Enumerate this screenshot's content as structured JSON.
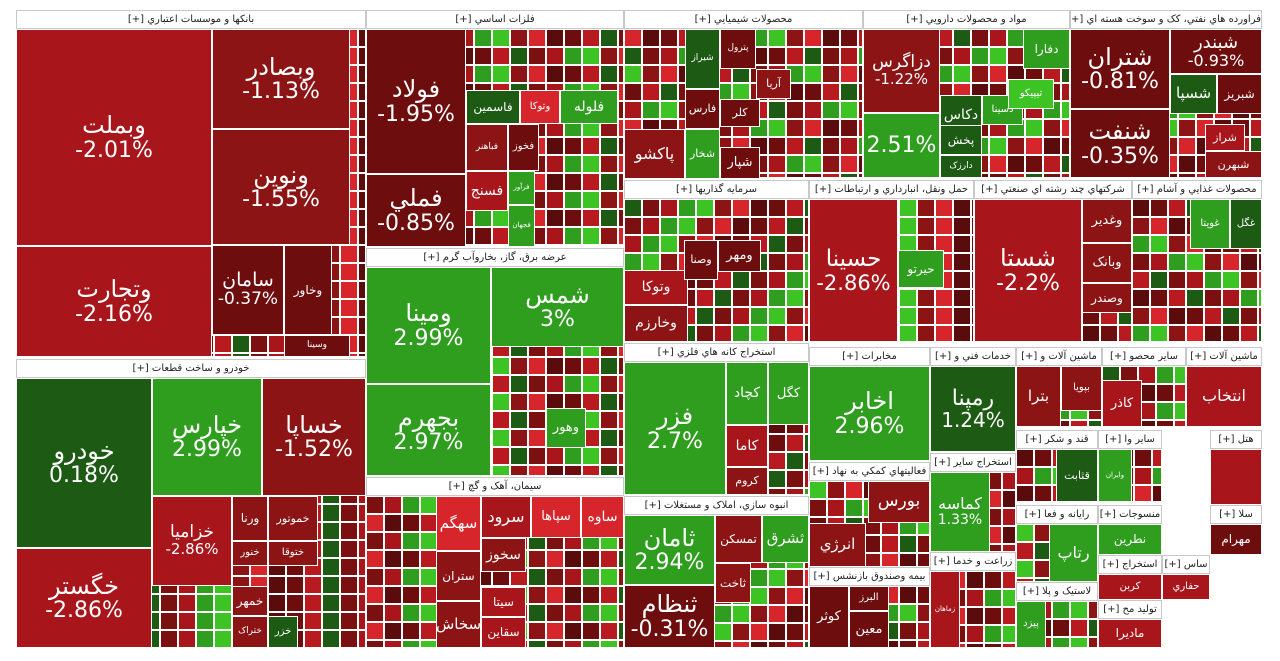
{
  "colors": {
    "dark_red": "#6e0d0d",
    "maroon": "#8c1414",
    "red": "#a8161c",
    "bright_red": "#d6252b",
    "dark_green": "#1d5a14",
    "green": "#2f9e1f",
    "bright_green": "#3ec325"
  },
  "sectors": [
    {
      "title": "بانکها و موسسات اعتباري [+]",
      "cells": [
        {
          "name": "وبملت",
          "change": "-2.01%",
          "color": "red"
        },
        {
          "name": "وتجارت",
          "change": "-2.16%",
          "color": "red"
        },
        {
          "name": "وبصادر",
          "change": "-1.13%",
          "color": "maroon"
        },
        {
          "name": "ونوين",
          "change": "-1.55%",
          "color": "maroon"
        },
        {
          "name": "سامان",
          "change": "-0.37%",
          "color": "dark_red"
        },
        {
          "name": "وخاور",
          "change": "",
          "color": "dark_red"
        },
        {
          "name": "وسينا",
          "change": "",
          "color": "dark_red"
        }
      ]
    },
    {
      "title": "فلزات اساسي [+]",
      "cells": [
        {
          "name": "فولاد",
          "change": "-1.95%",
          "color": "dark_red"
        },
        {
          "name": "فملي",
          "change": "-0.85%",
          "color": "dark_red"
        },
        {
          "name": "فاسمين",
          "change": "",
          "color": "dark_green"
        },
        {
          "name": "وتوکا",
          "change": "",
          "color": "bright_red"
        },
        {
          "name": "فلوله",
          "change": "",
          "color": "green"
        },
        {
          "name": "فباهنر",
          "change": "",
          "color": "maroon"
        },
        {
          "name": "فخوز",
          "change": "",
          "color": "dark_red"
        },
        {
          "name": "فسنج",
          "change": "",
          "color": "red"
        },
        {
          "name": "فرآور",
          "change": "",
          "color": "green"
        },
        {
          "name": "فجهان",
          "change": "",
          "color": "green"
        }
      ]
    },
    {
      "title": "محصولات شيميايي [+]",
      "cells": [
        {
          "name": "شيراز",
          "change": "",
          "color": "dark_green"
        },
        {
          "name": "پترول",
          "change": "",
          "color": "dark_red"
        },
        {
          "name": "فارس",
          "change": "",
          "color": "dark_red"
        },
        {
          "name": "آريا",
          "change": "",
          "color": "maroon"
        },
        {
          "name": "کلر",
          "change": "",
          "color": "dark_red"
        },
        {
          "name": "شخار",
          "change": "",
          "color": "green"
        },
        {
          "name": "پاکشو",
          "change": "",
          "color": "maroon"
        },
        {
          "name": "شپار",
          "change": "",
          "color": "dark_red"
        }
      ]
    },
    {
      "title": "مواد و محصولات دارويي [+]",
      "cells": [
        {
          "name": "دزاگرس",
          "change": "-1.22%",
          "color": "maroon"
        },
        {
          "name": "دفارا",
          "change": "",
          "color": "green"
        },
        {
          "name": "دکاس",
          "change": "",
          "color": "dark_green"
        },
        {
          "name": "دسينا",
          "change": "",
          "color": "green"
        },
        {
          "name": "تيپيکو",
          "change": "",
          "color": "bright_green"
        },
        {
          "name": "پخش",
          "change": "",
          "color": "dark_green"
        },
        {
          "name": "دارزک",
          "change": "",
          "color": "dark_green"
        },
        {
          "name": "",
          "change": "2.51%",
          "color": "green"
        }
      ]
    },
    {
      "title": "فراورده هاي نفتي، کک و سوخت هسته اي [+]",
      "cells": [
        {
          "name": "شتران",
          "change": "-0.81%",
          "color": "dark_red"
        },
        {
          "name": "شبندر",
          "change": "-0.93%",
          "color": "dark_red"
        },
        {
          "name": "شسپا",
          "change": "",
          "color": "dark_green"
        },
        {
          "name": "شبريز",
          "change": "",
          "color": "dark_red"
        },
        {
          "name": "شنفت",
          "change": "-0.35%",
          "color": "dark_red"
        },
        {
          "name": "شراز",
          "change": "",
          "color": "red"
        },
        {
          "name": "شبهرن",
          "change": "",
          "color": "maroon"
        }
      ]
    },
    {
      "title": "خودرو و ساخت قطعات [+]",
      "cells": [
        {
          "name": "خودرو",
          "change": "0.18%",
          "color": "dark_green"
        },
        {
          "name": "خگستر",
          "change": "-2.86%",
          "color": "red"
        },
        {
          "name": "خپارس",
          "change": "2.99%",
          "color": "green"
        },
        {
          "name": "خساپا",
          "change": "-1.52%",
          "color": "maroon"
        },
        {
          "name": "خزاميا",
          "change": "-2.86%",
          "color": "red"
        },
        {
          "name": "ورنا",
          "change": "",
          "color": "maroon"
        },
        {
          "name": "خموتور",
          "change": "",
          "color": "maroon"
        },
        {
          "name": "خنور",
          "change": "",
          "color": "maroon"
        },
        {
          "name": "خمهر",
          "change": "",
          "color": "maroon"
        },
        {
          "name": "ختوقا",
          "change": "",
          "color": "maroon"
        },
        {
          "name": "ختراک",
          "change": "",
          "color": "maroon"
        },
        {
          "name": "خزر",
          "change": "",
          "color": "dark_green"
        }
      ]
    },
    {
      "title": "عرضه برق، گاز، بخاروآب گرم [+]",
      "cells": [
        {
          "name": "ومينا",
          "change": "2.99%",
          "color": "green"
        },
        {
          "name": "شمس",
          "change": "3%",
          "color": "green"
        },
        {
          "name": "بجهرم",
          "change": "2.97%",
          "color": "green"
        },
        {
          "name": "وهور",
          "change": "",
          "color": "green"
        }
      ]
    },
    {
      "title": "سيمان، آهک و گچ [+]",
      "cells": [
        {
          "name": "سهگم",
          "change": "",
          "color": "bright_red"
        },
        {
          "name": "سرود",
          "change": "",
          "color": "red"
        },
        {
          "name": "سپاها",
          "change": "",
          "color": "bright_red"
        },
        {
          "name": "ساوه",
          "change": "",
          "color": "bright_red"
        },
        {
          "name": "ستران",
          "change": "",
          "color": "maroon"
        },
        {
          "name": "سخوز",
          "change": "",
          "color": "maroon"
        },
        {
          "name": "سيتا",
          "change": "",
          "color": "red"
        },
        {
          "name": "سخاش",
          "change": "",
          "color": "maroon"
        },
        {
          "name": "سقاين",
          "change": "",
          "color": "red"
        }
      ]
    },
    {
      "title": "سرمايه گذاريها [+]",
      "cells": [
        {
          "name": "وتوکا",
          "change": "",
          "color": "red"
        },
        {
          "name": "وصنا",
          "change": "",
          "color": "dark_red"
        },
        {
          "name": "ومهر",
          "change": "",
          "color": "dark_red"
        },
        {
          "name": "وخارزم",
          "change": "",
          "color": "maroon"
        }
      ]
    },
    {
      "title": "حمل ونقل، انبارداري و ارتباطات [+]",
      "cells": [
        {
          "name": "حسينا",
          "change": "-2.86%",
          "color": "red"
        },
        {
          "name": "حيرتو",
          "change": "",
          "color": "green"
        }
      ]
    },
    {
      "title": "شرکتهاي چند رشته اي صنعتي [+]",
      "cells": [
        {
          "name": "شستا",
          "change": "-2.2%",
          "color": "red"
        },
        {
          "name": "وغدير",
          "change": "",
          "color": "maroon"
        },
        {
          "name": "وبانک",
          "change": "",
          "color": "maroon"
        },
        {
          "name": "وصندر",
          "change": "",
          "color": "maroon"
        }
      ]
    },
    {
      "title": "محصولات غذايي و آشام [+]",
      "cells": [
        {
          "name": "غويتا",
          "change": "",
          "color": "green"
        },
        {
          "name": "غگل",
          "change": "",
          "color": "dark_green"
        }
      ]
    },
    {
      "title": "استخراج کانه هاي فلزي [+]",
      "cells": [
        {
          "name": "فزر",
          "change": "2.7%",
          "color": "green"
        },
        {
          "name": "کچاد",
          "change": "",
          "color": "green"
        },
        {
          "name": "کگل",
          "change": "",
          "color": "green"
        },
        {
          "name": "کاما",
          "change": "",
          "color": "red"
        },
        {
          "name": "کروم",
          "change": "",
          "color": "maroon"
        }
      ]
    },
    {
      "title": "مخابرات [+]",
      "cells": [
        {
          "name": "اخابر",
          "change": "2.96%",
          "color": "green"
        }
      ]
    },
    {
      "title": "فعاليتهاي کمکي به نهاد [+]",
      "cells": [
        {
          "name": "بورس",
          "change": "",
          "color": "maroon"
        },
        {
          "name": "انرژي",
          "change": "",
          "color": "maroon"
        }
      ]
    },
    {
      "title": "انبوه سازي، املاک و مستغلات [+]",
      "cells": [
        {
          "name": "ثامان",
          "change": "2.94%",
          "color": "green"
        },
        {
          "name": "تمسکن",
          "change": "",
          "color": "maroon"
        },
        {
          "name": "ثشرق",
          "change": "",
          "color": "green"
        },
        {
          "name": "ثاخت",
          "change": "",
          "color": "maroon"
        },
        {
          "name": "ثنظام",
          "change": "-0.31%",
          "color": "dark_red"
        }
      ]
    },
    {
      "title": "خدمات فني و [+]",
      "cells": [
        {
          "name": "رمپنا",
          "change": "1.24%",
          "color": "dark_green"
        }
      ]
    },
    {
      "title": "ماشين آلات و [+]",
      "cells": [
        {
          "name": "بپويا",
          "change": "",
          "color": "maroon"
        },
        {
          "name": "بترا",
          "change": "",
          "color": "maroon"
        }
      ]
    },
    {
      "title": "ساير محصو [+]",
      "cells": [
        {
          "name": "کاذر",
          "change": "",
          "color": "red"
        }
      ]
    },
    {
      "title": "ماشين آلات [+]",
      "cells": [
        {
          "name": "انتخاب",
          "change": "",
          "color": "red"
        }
      ]
    },
    {
      "title": "استخراج ساير [+]",
      "cells": [
        {
          "name": "کماسه",
          "change": "1.33%",
          "color": "green"
        }
      ]
    },
    {
      "title": "قند و شکر [+]",
      "cells": [
        {
          "name": "قثابت",
          "change": "",
          "color": "dark_green"
        }
      ]
    },
    {
      "title": "ساير وا [+]",
      "cells": [
        {
          "name": "وايران",
          "change": "",
          "color": "green"
        }
      ]
    },
    {
      "title": "زراعت و خدما [+]",
      "cells": [
        {
          "name": "زماهان",
          "change": "",
          "color": "red"
        }
      ]
    },
    {
      "title": "رايانه و فعا [+]",
      "cells": [
        {
          "name": "رتاپ",
          "change": "",
          "color": "green"
        }
      ]
    },
    {
      "title": "منسوجات [+]",
      "cells": [
        {
          "name": "نطرين",
          "change": "",
          "color": "green"
        }
      ]
    },
    {
      "title": "بيمه وصندوق بازنشس [+]",
      "cells": [
        {
          "name": "کوثر",
          "change": "",
          "color": "dark_red"
        },
        {
          "name": "البرز",
          "change": "",
          "color": "dark_red"
        },
        {
          "name": "معين",
          "change": "",
          "color": "dark_red"
        }
      ]
    },
    {
      "title": "لاستيک و پلا [+]",
      "cells": [
        {
          "name": "پيزد",
          "change": "",
          "color": "green"
        }
      ]
    },
    {
      "title": "استخراج [+]",
      "cells": [
        {
          "name": "کربن",
          "change": "",
          "color": "red"
        }
      ]
    },
    {
      "title": "تولید مح [+]",
      "cells": [
        {
          "name": "مادیرا",
          "change": "",
          "color": "red"
        }
      ]
    },
    {
      "title": "ساس [+]",
      "cells": [
        {
          "name": "حفاري",
          "change": "",
          "color": "red"
        }
      ]
    },
    {
      "title": "سلا [+]",
      "cells": [
        {
          "name": "مهرام",
          "change": "",
          "color": "dark_red"
        }
      ]
    },
    {
      "title": "هتل [+]",
      "cells": [
        {
          "name": "",
          "change": "",
          "color": "red"
        }
      ]
    }
  ]
}
